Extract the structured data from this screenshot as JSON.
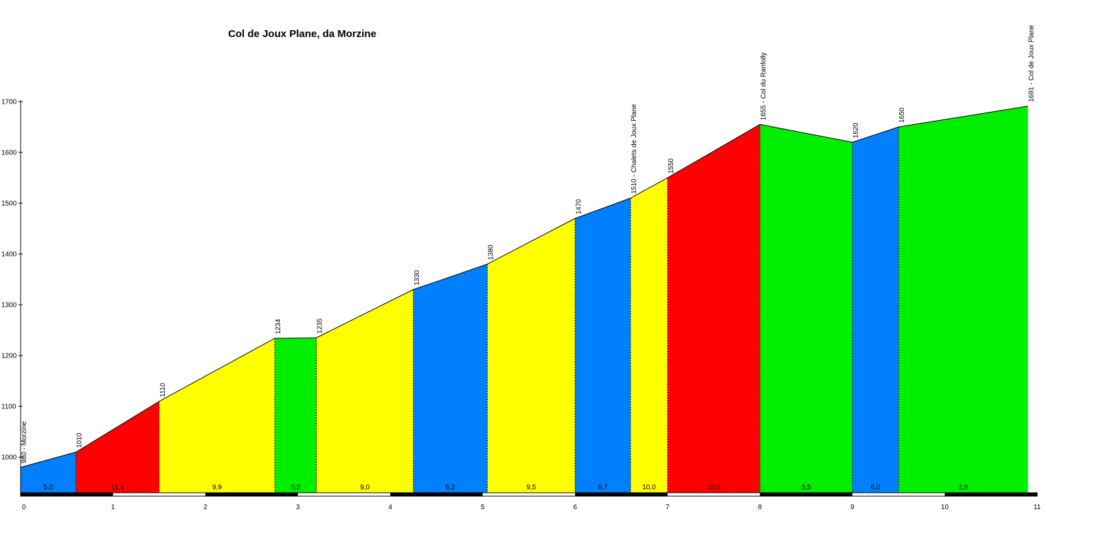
{
  "chart_data": {
    "type": "area",
    "title": "Col de Joux Plane, da Morzine",
    "xlabel": "",
    "ylabel": "",
    "xlim": [
      0,
      11
    ],
    "ylim": [
      930,
      1700
    ],
    "x_ticks": [
      0,
      1,
      2,
      3,
      4,
      5,
      6,
      7,
      8,
      9,
      10,
      11
    ],
    "y_ticks": [
      1000,
      1100,
      1200,
      1300,
      1400,
      1500,
      1600,
      1700
    ],
    "grid": false,
    "colors": {
      "blue": "#0080ff",
      "red": "#ff0000",
      "yellow": "#ffff00",
      "green": "#00ee00"
    },
    "points": [
      {
        "x": 0,
        "y": 980,
        "label": "980 - Morzine"
      },
      {
        "x": 0.6,
        "y": 1010,
        "label": "1010"
      },
      {
        "x": 1.5,
        "y": 1110,
        "label": "1110"
      },
      {
        "x": 2.75,
        "y": 1234,
        "label": "1234"
      },
      {
        "x": 3.2,
        "y": 1235,
        "label": "1235"
      },
      {
        "x": 4.25,
        "y": 1330,
        "label": "1330"
      },
      {
        "x": 5.05,
        "y": 1380,
        "label": "1380"
      },
      {
        "x": 6.0,
        "y": 1470,
        "label": "1470"
      },
      {
        "x": 6.6,
        "y": 1510,
        "label": "1510 - Chalets de Joux Plane"
      },
      {
        "x": 7.0,
        "y": 1550,
        "label": "1550"
      },
      {
        "x": 8.0,
        "y": 1655,
        "label": "1655 - Col du Ranfolly"
      },
      {
        "x": 9.0,
        "y": 1620,
        "label": "1620"
      },
      {
        "x": 9.5,
        "y": 1650,
        "label": "1650"
      },
      {
        "x": 10.9,
        "y": 1691,
        "label": "1691 - Col de Joux Plane"
      }
    ],
    "segments": [
      {
        "gradient": "5,0",
        "color": "blue"
      },
      {
        "gradient": "11,1",
        "color": "red"
      },
      {
        "gradient": "9,9",
        "color": "yellow"
      },
      {
        "gradient": "0,2",
        "color": "green"
      },
      {
        "gradient": "9,0",
        "color": "yellow"
      },
      {
        "gradient": "6,2",
        "color": "blue"
      },
      {
        "gradient": "9,5",
        "color": "yellow"
      },
      {
        "gradient": "6,7",
        "color": "blue"
      },
      {
        "gradient": "10,0",
        "color": "yellow"
      },
      {
        "gradient": "10,5",
        "color": "red"
      },
      {
        "gradient": "3,5",
        "color": "green"
      },
      {
        "gradient": "6,0",
        "color": "blue"
      },
      {
        "gradient": "2,9",
        "color": "green"
      }
    ]
  }
}
